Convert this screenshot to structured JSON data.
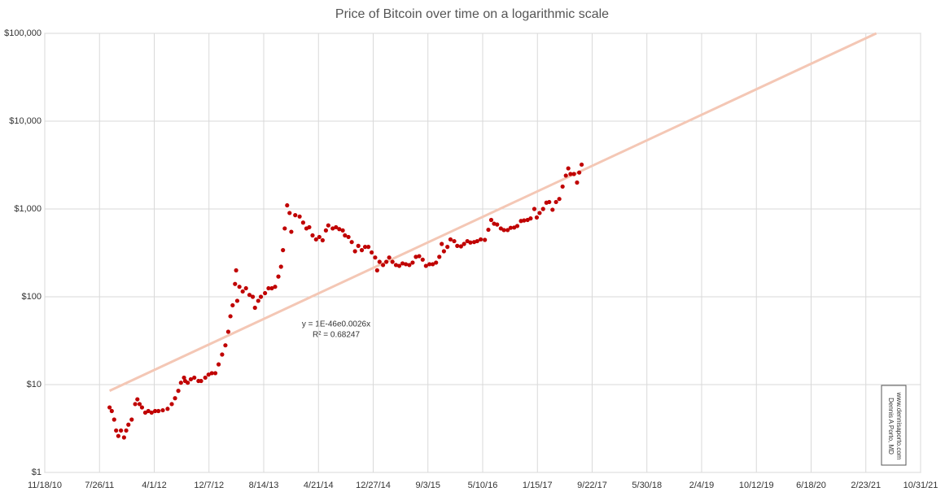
{
  "chart_data": {
    "type": "scatter",
    "title": "Price of Bitcoin over time on a logarithmic scale",
    "log_y": true,
    "grid": true,
    "xlim": [
      "11/18/10",
      "10/31/21"
    ],
    "xticks": [
      "11/18/10",
      "7/26/11",
      "4/1/12",
      "12/7/12",
      "8/14/13",
      "4/21/14",
      "12/27/14",
      "9/3/15",
      "5/10/16",
      "1/15/17",
      "9/22/17",
      "5/30/18",
      "2/4/19",
      "10/12/19",
      "6/18/20",
      "2/23/21",
      "10/31/21"
    ],
    "ylim": [
      1,
      100000
    ],
    "yticks": [
      {
        "value": 1,
        "label": "$1"
      },
      {
        "value": 10,
        "label": "$10"
      },
      {
        "value": 100,
        "label": "$100"
      },
      {
        "value": 1000,
        "label": "$1,000"
      },
      {
        "value": 10000,
        "label": "$10,000"
      },
      {
        "value": 100000,
        "label": "$100,000"
      }
    ],
    "series": [
      {
        "color": "#c00000",
        "x": [
          "9/10/11",
          "9/20/11",
          "10/1/11",
          "10/10/11",
          "10/20/11",
          "11/1/11",
          "11/15/11",
          "11/25/11",
          "12/5/11",
          "12/20/11",
          "1/5/12",
          "1/15/12",
          "1/25/12",
          "2/5/12",
          "2/20/12",
          "3/5/12",
          "3/20/12",
          "4/5/12",
          "4/20/12",
          "5/10/12",
          "6/1/12",
          "6/20/12",
          "7/5/12",
          "7/20/12",
          "8/1/12",
          "8/15/12",
          "8/20/12",
          "9/1/12",
          "9/15/12",
          "10/1/12",
          "10/20/12",
          "11/1/12",
          "11/20/12",
          "12/5/12",
          "12/20/12",
          "1/5/13",
          "1/20/13",
          "2/5/13",
          "2/20/13",
          "3/5/13",
          "3/15/13",
          "3/25/13",
          "4/5/13",
          "4/10/13",
          "4/15/13",
          "4/25/13",
          "5/10/13",
          "5/25/13",
          "6/10/13",
          "6/25/13",
          "7/5/13",
          "7/20/13",
          "8/1/13",
          "8/20/13",
          "9/5/13",
          "9/20/13",
          "10/5/13",
          "10/20/13",
          "11/1/13",
          "11/10/13",
          "11/18/13",
          "11/29/13",
          "12/10/13",
          "12/18/13",
          "1/5/14",
          "1/25/14",
          "2/10/14",
          "2/25/14",
          "3/10/14",
          "3/25/14",
          "4/10/14",
          "4/25/14",
          "5/10/14",
          "5/25/14",
          "6/5/14",
          "6/25/14",
          "7/10/14",
          "7/25/14",
          "8/10/14",
          "8/20/14",
          "9/5/14",
          "9/20/14",
          "10/5/14",
          "10/20/14",
          "11/5/14",
          "11/20/14",
          "12/5/14",
          "12/20/14",
          "1/5/15",
          "1/14/15",
          "1/25/15",
          "2/10/15",
          "2/25/15",
          "3/10/15",
          "3/25/15",
          "4/10/15",
          "4/25/15",
          "5/10/15",
          "5/25/15",
          "6/10/15",
          "6/25/15",
          "7/10/15",
          "7/25/15",
          "8/10/15",
          "8/25/15",
          "9/10/15",
          "9/25/15",
          "10/10/15",
          "10/25/15",
          "11/5/15",
          "11/15/15",
          "12/1/15",
          "12/15/15",
          "1/1/16",
          "1/15/16",
          "2/1/16",
          "2/15/16",
          "3/1/16",
          "3/15/16",
          "4/1/16",
          "4/15/16",
          "5/1/16",
          "5/20/16",
          "6/5/16",
          "6/18/16",
          "7/1/16",
          "7/15/16",
          "8/1/16",
          "8/15/16",
          "9/1/16",
          "9/15/16",
          "10/1/16",
          "10/15/16",
          "11/1/16",
          "11/15/16",
          "12/1/16",
          "12/15/16",
          "1/1/17",
          "1/12/17",
          "1/25/17",
          "2/10/17",
          "2/25/17",
          "3/10/17",
          "3/25/17",
          "4/10/17",
          "4/25/17",
          "5/10/17",
          "5/25/17",
          "6/5/17",
          "6/15/17",
          "7/1/17",
          "7/15/17",
          "7/25/17",
          "8/5/17"
        ],
        "values": [
          5.5,
          5,
          4,
          3,
          2.6,
          3,
          2.5,
          3,
          3.5,
          4,
          6,
          6.8,
          6,
          5.5,
          4.8,
          5,
          4.8,
          5,
          5,
          5.1,
          5.3,
          6,
          7,
          8.5,
          10.5,
          12,
          11,
          10.5,
          11.5,
          12,
          11,
          11,
          12,
          13,
          13.5,
          13.5,
          17,
          22,
          28,
          40,
          60,
          80,
          140,
          200,
          90,
          130,
          115,
          125,
          105,
          100,
          75,
          90,
          100,
          110,
          125,
          125,
          130,
          170,
          220,
          340,
          600,
          1100,
          900,
          550,
          850,
          820,
          700,
          600,
          620,
          500,
          450,
          480,
          440,
          570,
          650,
          600,
          620,
          590,
          570,
          500,
          480,
          420,
          330,
          380,
          340,
          370,
          370,
          320,
          280,
          200,
          250,
          230,
          250,
          280,
          250,
          230,
          225,
          240,
          235,
          230,
          245,
          285,
          290,
          265,
          225,
          235,
          235,
          245,
          285,
          400,
          330,
          370,
          450,
          430,
          380,
          375,
          400,
          430,
          415,
          420,
          430,
          450,
          445,
          580,
          750,
          680,
          665,
          600,
          575,
          575,
          610,
          615,
          640,
          730,
          740,
          750,
          780,
          1000,
          800,
          900,
          1000,
          1180,
          1200,
          980,
          1200,
          1300,
          1800,
          2400,
          2900,
          2500,
          2500,
          2000,
          2600,
          3200
        ]
      }
    ],
    "trendline": {
      "color": "#f4c7b5",
      "x": [
        "9/10/11",
        "4/12/21"
      ],
      "values": [
        8.5,
        100000
      ]
    },
    "annotations": [
      "y = 1E-46e0.0026x",
      "R² = 0.68247"
    ],
    "watermark": [
      "Dennis A Porto, MD",
      "www.dennisaporto.com"
    ]
  }
}
